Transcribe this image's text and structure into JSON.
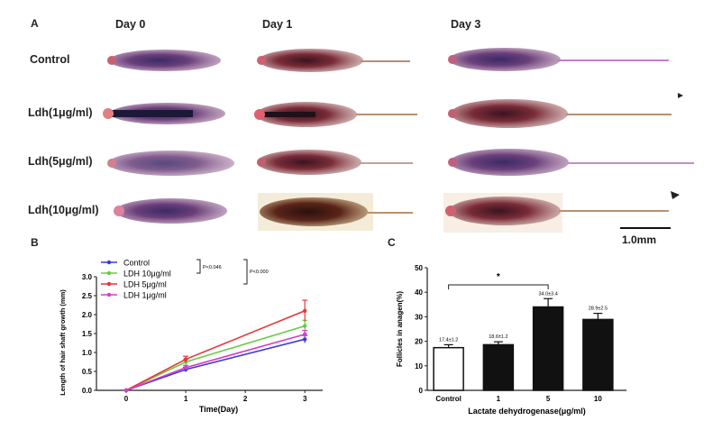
{
  "panel_a": {
    "letter": "A",
    "days": [
      "Day 0",
      "Day 1",
      "Day 3"
    ],
    "rows": [
      "Control",
      "Ldh(1μg/ml)",
      "Ldh(5μg/ml)",
      "Ldh(10μg/ml)"
    ],
    "scale_bar": "1.0mm"
  },
  "panel_b": {
    "letter": "B",
    "legend": [
      {
        "name": "Control",
        "color": "#3a3ad6"
      },
      {
        "name": "LDH 10μg/ml",
        "color": "#66cc44"
      },
      {
        "name": "LDH 5μg/ml",
        "color": "#e8343c"
      },
      {
        "name": "LDH 1μg/ml",
        "color": "#d83cc8"
      }
    ],
    "p1": "P<0.046",
    "p2": "P<0.000"
  },
  "panel_c": {
    "letter": "C",
    "significance": "*"
  },
  "chart_data": [
    {
      "type": "line",
      "xlabel": "Time(Day)",
      "ylabel": "Length of hair shaft growth (mm)",
      "x": [
        0,
        1,
        3
      ],
      "xticks": [
        "0",
        "1",
        "2",
        "3"
      ],
      "yticks": [
        "0.0",
        "0.5",
        "1.0",
        "1.5",
        "2.0",
        "2.5",
        "3.0"
      ],
      "xlim": [
        -0.5,
        3.3
      ],
      "ylim": [
        0,
        3.0
      ],
      "series": [
        {
          "name": "Control",
          "values": [
            0,
            0.55,
            1.35
          ],
          "errors": [
            0,
            0.06,
            0.1
          ],
          "color": "#3a3ad6"
        },
        {
          "name": "LDH 10μg/ml",
          "values": [
            0,
            0.75,
            1.7
          ],
          "errors": [
            0,
            0.08,
            0.15
          ],
          "color": "#66cc44"
        },
        {
          "name": "LDH 5μg/ml",
          "values": [
            0,
            0.82,
            2.1
          ],
          "errors": [
            0,
            0.08,
            0.28
          ],
          "color": "#e8343c"
        },
        {
          "name": "LDH 1μg/ml",
          "values": [
            0,
            0.6,
            1.48
          ],
          "errors": [
            0,
            0.06,
            0.1
          ],
          "color": "#d83cc8"
        }
      ]
    },
    {
      "type": "bar",
      "xlabel": "Lactate dehydrogenase(μg/ml)",
      "ylabel": "Follicles in anagen(%)",
      "categories": [
        "Control",
        "1",
        "5",
        "10"
      ],
      "values": [
        17.4,
        18.6,
        34.0,
        28.9
      ],
      "errors": [
        1.2,
        1.2,
        3.4,
        2.5
      ],
      "data_labels": [
        "17.4±1.2",
        "18.6±1.2",
        "34.0±3.4",
        "28.9±2.5"
      ],
      "yticks": [
        "0",
        "10",
        "20",
        "30",
        "40",
        "50"
      ],
      "ylim": [
        0,
        50
      ],
      "fills": [
        "#ffffff",
        "#111111",
        "#111111",
        "#111111"
      ]
    }
  ]
}
